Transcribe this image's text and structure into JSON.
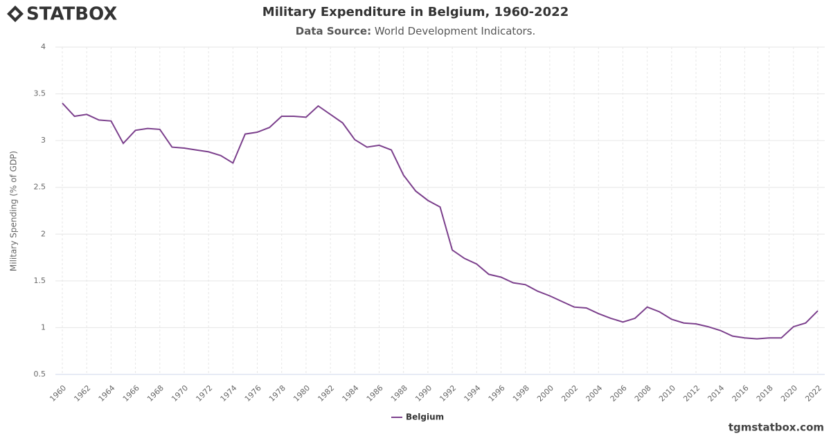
{
  "logo": "STATBOX",
  "footer": "tgmstatbox.com",
  "chart_data": {
    "type": "line",
    "title": "Military Expenditure in Belgium, 1960-2022",
    "subtitle_label": "Data Source:",
    "subtitle": "World Development Indicators.",
    "y_label": "Military Spending (% of GDP)",
    "x": [
      1960,
      1961,
      1962,
      1963,
      1964,
      1965,
      1966,
      1967,
      1968,
      1969,
      1970,
      1971,
      1972,
      1973,
      1974,
      1975,
      1976,
      1977,
      1978,
      1979,
      1980,
      1981,
      1982,
      1983,
      1984,
      1985,
      1986,
      1987,
      1988,
      1989,
      1990,
      1991,
      1992,
      1993,
      1994,
      1995,
      1996,
      1997,
      1998,
      1999,
      2000,
      2001,
      2002,
      2003,
      2004,
      2005,
      2006,
      2007,
      2008,
      2009,
      2010,
      2011,
      2012,
      2013,
      2014,
      2015,
      2016,
      2017,
      2018,
      2019,
      2020,
      2021,
      2022
    ],
    "series": [
      {
        "name": "Belgium",
        "color": "#7b3f8c",
        "values": [
          3.4,
          3.26,
          3.28,
          3.22,
          3.21,
          2.97,
          3.11,
          3.13,
          3.12,
          2.93,
          2.92,
          2.9,
          2.88,
          2.84,
          2.76,
          3.07,
          3.09,
          3.14,
          3.26,
          3.26,
          3.25,
          3.37,
          3.28,
          3.19,
          3.01,
          2.93,
          2.95,
          2.9,
          2.63,
          2.46,
          2.36,
          2.29,
          1.83,
          1.74,
          1.68,
          1.57,
          1.54,
          1.48,
          1.46,
          1.39,
          1.34,
          1.28,
          1.22,
          1.21,
          1.15,
          1.1,
          1.06,
          1.1,
          1.22,
          1.17,
          1.09,
          1.05,
          1.04,
          1.01,
          0.97,
          0.91,
          0.89,
          0.88,
          0.89,
          0.89,
          1.01,
          1.05,
          1.18
        ]
      }
    ],
    "xlim": [
      1960,
      2022
    ],
    "xticks": [
      1960,
      1962,
      1964,
      1966,
      1968,
      1970,
      1972,
      1974,
      1976,
      1978,
      1980,
      1982,
      1984,
      1986,
      1988,
      1990,
      1992,
      1994,
      1996,
      1998,
      2000,
      2002,
      2004,
      2006,
      2008,
      2010,
      2012,
      2014,
      2016,
      2018,
      2020,
      2022
    ],
    "ylim": [
      0.5,
      4
    ],
    "yticks": [
      0.5,
      1,
      1.5,
      2,
      2.5,
      3,
      3.5,
      4
    ],
    "grid": true,
    "legend": "bottom"
  }
}
